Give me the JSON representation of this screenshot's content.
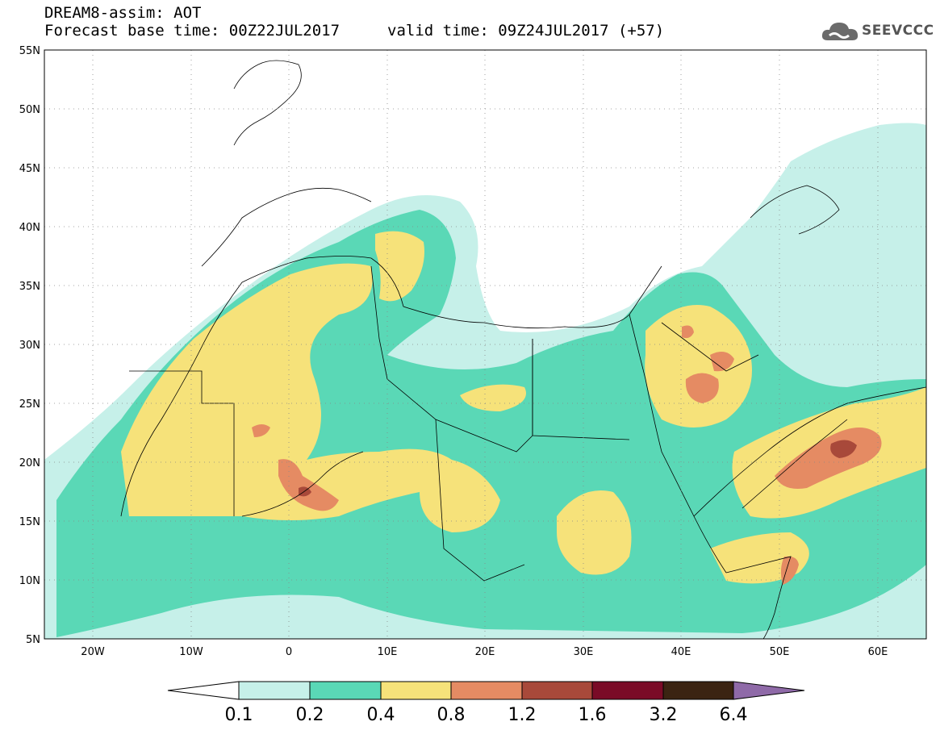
{
  "header": {
    "line1": "DREAM8-assim: AOT",
    "line2": "Forecast base time: 00Z22JUL2017",
    "line3": "valid time: 09Z24JUL2017 (+57)",
    "logo_text": "SEEVCCC"
  },
  "map": {
    "lon_labels": [
      "20W",
      "10W",
      "0",
      "10E",
      "20E",
      "30E",
      "40E",
      "50E",
      "60E"
    ],
    "lat_labels": [
      "55N",
      "50N",
      "45N",
      "40N",
      "35N",
      "30N",
      "25N",
      "20N",
      "15N",
      "10N",
      "5N"
    ],
    "lon_range": [
      -25,
      65
    ],
    "lat_range": [
      5,
      55
    ]
  },
  "colorbar": {
    "labels": [
      "0.1",
      "0.2",
      "0.4",
      "0.8",
      "1.2",
      "1.6",
      "3.2",
      "6.4"
    ],
    "colors": [
      "#ffffff",
      "#c6f0e9",
      "#5ad8b6",
      "#f6e27a",
      "#e58b63",
      "#a8493a",
      "#7a0b27",
      "#3b2412",
      "#8f6aa8"
    ]
  }
}
